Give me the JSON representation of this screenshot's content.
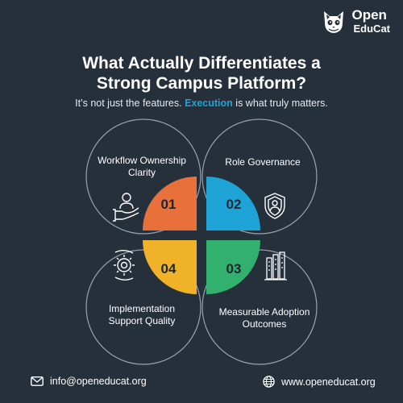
{
  "brand": {
    "line1": "Open",
    "line2": "EduCat"
  },
  "header": {
    "title_line1": "What Actually Differentiates a",
    "title_line2": "Strong Campus Platform?",
    "subtitle_before": "It’s not just the features. ",
    "subtitle_accent": "Execution",
    "subtitle_after": " is what truly matters."
  },
  "cards": [
    {
      "number": "01",
      "label_line1": "Workflow Ownership",
      "label_line2": "Clarity",
      "icon": "person-hand-icon",
      "color": "#e8703a"
    },
    {
      "number": "02",
      "label_line1": "Role Governance",
      "label_line2": "",
      "icon": "shield-user-icon",
      "color": "#1da3d6"
    },
    {
      "number": "03",
      "label_line1": "Measurable Adoption",
      "label_line2": "Outcomes",
      "icon": "bar-chart-icon",
      "color": "#31b06e"
    },
    {
      "number": "04",
      "label_line1": "Implementation",
      "label_line2": "Support Quality",
      "icon": "gear-icon",
      "color": "#f0b229"
    }
  ],
  "footer": {
    "email": "info@openeducat.org",
    "website": "www.openeducat.org"
  },
  "colors": {
    "background": "#25303b",
    "accent": "#1fa3d8",
    "outline": "#9aa3ad"
  }
}
